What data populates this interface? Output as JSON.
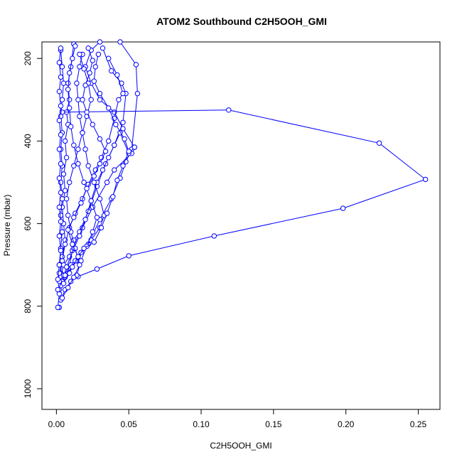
{
  "chart_data": {
    "type": "line",
    "title": "ATOM2 Southbound C2H5OOH_GMI",
    "xlabel": "C2H5OOH_GMI",
    "ylabel": "Pressure (mbar)",
    "xlim": [
      -0.01,
      0.265
    ],
    "ylim": [
      1050,
      160
    ],
    "y_axis_inverted": true,
    "x_ticks": [
      0.0,
      0.05,
      0.1,
      0.15,
      0.2,
      0.25
    ],
    "x_tick_labels": [
      "0.00",
      "0.05",
      "0.10",
      "0.15",
      "0.20",
      "0.25"
    ],
    "y_ticks": [
      200,
      400,
      600,
      800,
      1000
    ],
    "y_tick_labels": [
      "200",
      "400",
      "600",
      "800",
      "1000"
    ],
    "grid": false,
    "legend": "none",
    "series_color": "#0000ff",
    "series": [
      {
        "points": [
          [
            0.002,
            803
          ],
          [
            0.001,
            803
          ],
          [
            0.002,
            770
          ],
          [
            0.004,
            745
          ],
          [
            0.003,
            720
          ],
          [
            0.004,
            680
          ],
          [
            0.006,
            640
          ],
          [
            0.005,
            600
          ],
          [
            0.004,
            560
          ],
          [
            0.006,
            520
          ],
          [
            0.005,
            480
          ],
          [
            0.007,
            440
          ],
          [
            0.006,
            400
          ],
          [
            0.008,
            360
          ],
          [
            0.007,
            330
          ],
          [
            0.009,
            300
          ],
          [
            0.008,
            260
          ],
          [
            0.01,
            220
          ],
          [
            0.012,
            165
          ]
        ]
      },
      {
        "points": [
          [
            0.003,
            730
          ],
          [
            0.005,
            700
          ],
          [
            0.009,
            680
          ],
          [
            0.012,
            640
          ],
          [
            0.018,
            610
          ],
          [
            0.025,
            560
          ],
          [
            0.035,
            500
          ],
          [
            0.04,
            470
          ],
          [
            0.052,
            430
          ],
          [
            0.054,
            415
          ],
          [
            0.046,
            370
          ],
          [
            0.04,
            330
          ],
          [
            0.03,
            300
          ],
          [
            0.024,
            260
          ],
          [
            0.02,
            220
          ],
          [
            0.024,
            180
          ],
          [
            0.03,
            160
          ]
        ]
      },
      {
        "points": [
          [
            0.004,
            330
          ],
          [
            0.119,
            325
          ],
          [
            0.223,
            405
          ],
          [
            0.255,
            493
          ],
          [
            0.198,
            563
          ],
          [
            0.109,
            630
          ],
          [
            0.05,
            678
          ],
          [
            0.028,
            710
          ],
          [
            0.015,
            728
          ]
        ]
      },
      {
        "points": [
          [
            0.002,
            760
          ],
          [
            0.006,
            730
          ],
          [
            0.014,
            690
          ],
          [
            0.022,
            650
          ],
          [
            0.03,
            590
          ],
          [
            0.038,
            540
          ],
          [
            0.044,
            490
          ],
          [
            0.048,
            450
          ],
          [
            0.052,
            420
          ],
          [
            0.056,
            285
          ],
          [
            0.055,
            215
          ],
          [
            0.044,
            160
          ]
        ]
      },
      {
        "points": [
          [
            0.003,
            750
          ],
          [
            0.008,
            720
          ],
          [
            0.011,
            665
          ],
          [
            0.016,
            620
          ],
          [
            0.022,
            570
          ],
          [
            0.028,
            510
          ],
          [
            0.034,
            455
          ],
          [
            0.04,
            410
          ],
          [
            0.046,
            355
          ],
          [
            0.048,
            285
          ],
          [
            0.045,
            260
          ],
          [
            0.038,
            230
          ],
          [
            0.032,
            175
          ]
        ]
      },
      {
        "points": [
          [
            0.001,
            760
          ],
          [
            0.004,
            740
          ],
          [
            0.007,
            705
          ],
          [
            0.012,
            660
          ],
          [
            0.016,
            630
          ],
          [
            0.02,
            590
          ],
          [
            0.024,
            545
          ],
          [
            0.028,
            500
          ],
          [
            0.032,
            470
          ],
          [
            0.036,
            440
          ],
          [
            0.04,
            410
          ],
          [
            0.044,
            380
          ],
          [
            0.05,
            430
          ],
          [
            0.054,
            415
          ]
        ]
      },
      {
        "points": [
          [
            0.002,
            720
          ],
          [
            0.004,
            690
          ],
          [
            0.006,
            650
          ],
          [
            0.009,
            610
          ],
          [
            0.013,
            575
          ],
          [
            0.018,
            540
          ],
          [
            0.022,
            505
          ],
          [
            0.027,
            470
          ],
          [
            0.031,
            440
          ],
          [
            0.036,
            400
          ],
          [
            0.04,
            345
          ],
          [
            0.043,
            300
          ],
          [
            0.046,
            285
          ],
          [
            0.042,
            240
          ],
          [
            0.036,
            200
          ]
        ]
      },
      {
        "points": [
          [
            0.002,
            740
          ],
          [
            0.005,
            725
          ],
          [
            0.01,
            700
          ],
          [
            0.017,
            670
          ],
          [
            0.024,
            640
          ],
          [
            0.03,
            610
          ],
          [
            0.033,
            580
          ],
          [
            0.03,
            540
          ],
          [
            0.026,
            500
          ],
          [
            0.022,
            460
          ],
          [
            0.02,
            420
          ],
          [
            0.018,
            380
          ],
          [
            0.016,
            340
          ],
          [
            0.015,
            300
          ],
          [
            0.014,
            260
          ],
          [
            0.016,
            220
          ],
          [
            0.018,
            190
          ]
        ]
      },
      {
        "points": [
          [
            0.003,
            785
          ],
          [
            0.006,
            760
          ],
          [
            0.01,
            740
          ],
          [
            0.014,
            725
          ],
          [
            0.017,
            690
          ],
          [
            0.021,
            655
          ],
          [
            0.025,
            620
          ],
          [
            0.028,
            585
          ],
          [
            0.024,
            545
          ],
          [
            0.019,
            500
          ],
          [
            0.015,
            455
          ],
          [
            0.012,
            410
          ],
          [
            0.01,
            365
          ],
          [
            0.009,
            320
          ],
          [
            0.008,
            275
          ],
          [
            0.009,
            235
          ],
          [
            0.011,
            200
          ],
          [
            0.013,
            170
          ]
        ]
      },
      {
        "points": [
          [
            0.004,
            780
          ],
          [
            0.008,
            755
          ],
          [
            0.012,
            730
          ],
          [
            0.016,
            700
          ],
          [
            0.013,
            660
          ],
          [
            0.01,
            620
          ],
          [
            0.008,
            580
          ],
          [
            0.007,
            540
          ],
          [
            0.009,
            500
          ],
          [
            0.012,
            460
          ],
          [
            0.015,
            420
          ],
          [
            0.018,
            380
          ],
          [
            0.021,
            340
          ],
          [
            0.024,
            300
          ],
          [
            0.022,
            260
          ],
          [
            0.019,
            225
          ],
          [
            0.016,
            190
          ]
        ]
      },
      {
        "points": [
          [
            0.002,
            700
          ],
          [
            0.003,
            660
          ],
          [
            0.004,
            620
          ],
          [
            0.003,
            580
          ],
          [
            0.004,
            540
          ],
          [
            0.003,
            500
          ],
          [
            0.004,
            460
          ],
          [
            0.003,
            420
          ],
          [
            0.004,
            380
          ],
          [
            0.003,
            340
          ],
          [
            0.004,
            300
          ],
          [
            0.005,
            260
          ],
          [
            0.004,
            220
          ],
          [
            0.003,
            180
          ]
        ]
      },
      {
        "points": [
          [
            0.005,
            745
          ],
          [
            0.009,
            720
          ],
          [
            0.013,
            690
          ],
          [
            0.019,
            660
          ],
          [
            0.026,
            645
          ],
          [
            0.031,
            610
          ],
          [
            0.035,
            575
          ],
          [
            0.039,
            535
          ],
          [
            0.042,
            495
          ],
          [
            0.046,
            460
          ],
          [
            0.05,
            425
          ],
          [
            0.047,
            395
          ],
          [
            0.041,
            360
          ],
          [
            0.036,
            320
          ],
          [
            0.03,
            285
          ],
          [
            0.026,
            255
          ],
          [
            0.027,
            220
          ],
          [
            0.029,
            190
          ]
        ]
      },
      {
        "points": [
          [
            0.001,
            735
          ],
          [
            0.002,
            700
          ],
          [
            0.003,
            665
          ],
          [
            0.002,
            630
          ],
          [
            0.003,
            595
          ],
          [
            0.002,
            560
          ],
          [
            0.003,
            525
          ],
          [
            0.002,
            490
          ],
          [
            0.003,
            455
          ],
          [
            0.002,
            420
          ],
          [
            0.003,
            385
          ],
          [
            0.002,
            350
          ],
          [
            0.003,
            315
          ],
          [
            0.002,
            280
          ],
          [
            0.003,
            245
          ],
          [
            0.002,
            210
          ],
          [
            0.003,
            175
          ]
        ]
      },
      {
        "points": [
          [
            0.006,
            725
          ],
          [
            0.011,
            705
          ],
          [
            0.015,
            680
          ],
          [
            0.011,
            650
          ],
          [
            0.008,
            615
          ],
          [
            0.012,
            585
          ],
          [
            0.017,
            550
          ],
          [
            0.021,
            515
          ],
          [
            0.026,
            485
          ],
          [
            0.03,
            455
          ],
          [
            0.034,
            425
          ],
          [
            0.03,
            395
          ],
          [
            0.025,
            360
          ],
          [
            0.021,
            330
          ],
          [
            0.018,
            300
          ],
          [
            0.02,
            265
          ],
          [
            0.023,
            235
          ],
          [
            0.025,
            205
          ],
          [
            0.022,
            175
          ]
        ]
      }
    ]
  }
}
